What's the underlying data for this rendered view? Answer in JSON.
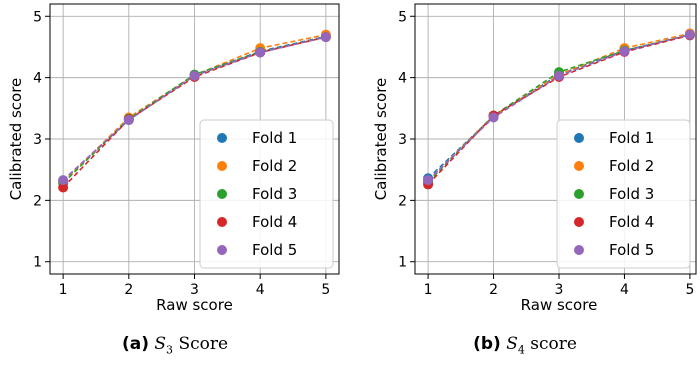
{
  "colors": {
    "fold_1": "#1f77b4",
    "fold_2": "#ff7f0e",
    "fold_3": "#2ca02c",
    "fold_4": "#d62728",
    "fold_5": "#9467bd",
    "grid": "#b0b0b0",
    "axis": "#000000"
  },
  "chart_data": [
    {
      "type": "line",
      "line_style": "dashed with circle markers",
      "caption_tag": "(a)",
      "caption_math": "S",
      "caption_sub": "3",
      "caption_text": "Score",
      "xlabel": "Raw score",
      "ylabel": "Calibrated score",
      "xlim": [
        0.8,
        5.2
      ],
      "ylim": [
        0.8,
        5.2
      ],
      "x_ticks": [
        "1",
        "2",
        "3",
        "4",
        "5"
      ],
      "y_ticks": [
        "1",
        "2",
        "3",
        "4",
        "5"
      ],
      "grid": true,
      "legend_position": "bottom-right",
      "x": [
        1,
        2,
        3,
        4,
        5
      ],
      "series": [
        {
          "name": "Fold 1",
          "values": [
            2.32,
            3.31,
            4.04,
            4.43,
            4.67
          ]
        },
        {
          "name": "Fold 2",
          "values": [
            2.3,
            3.35,
            4.04,
            4.48,
            4.7
          ]
        },
        {
          "name": "Fold 3",
          "values": [
            2.28,
            3.33,
            4.05,
            4.42,
            4.66
          ]
        },
        {
          "name": "Fold 4",
          "values": [
            2.21,
            3.32,
            4.01,
            4.41,
            4.66
          ]
        },
        {
          "name": "Fold 5",
          "values": [
            2.33,
            3.31,
            4.03,
            4.41,
            4.66
          ]
        }
      ]
    },
    {
      "type": "line",
      "line_style": "dashed with circle markers",
      "caption_tag": "(b)",
      "caption_math": "S",
      "caption_sub": "4",
      "caption_text": "score",
      "xlabel": "Raw score",
      "ylabel": "Calibrated score",
      "xlim": [
        0.8,
        5.2
      ],
      "ylim": [
        0.8,
        5.2
      ],
      "x_ticks": [
        "1",
        "2",
        "3",
        "4",
        "5"
      ],
      "y_ticks": [
        "1",
        "2",
        "3",
        "4",
        "5"
      ],
      "grid": true,
      "legend_position": "bottom-right",
      "x": [
        1,
        2,
        3,
        4,
        5
      ],
      "series": [
        {
          "name": "Fold 1",
          "values": [
            2.36,
            3.37,
            4.05,
            4.44,
            4.7
          ]
        },
        {
          "name": "Fold 2",
          "values": [
            2.32,
            3.38,
            4.05,
            4.48,
            4.72
          ]
        },
        {
          "name": "Fold 3",
          "values": [
            2.3,
            3.38,
            4.09,
            4.44,
            4.69
          ]
        },
        {
          "name": "Fold 4",
          "values": [
            2.26,
            3.38,
            4.01,
            4.42,
            4.69
          ]
        },
        {
          "name": "Fold 5",
          "values": [
            2.33,
            3.35,
            4.03,
            4.43,
            4.7
          ]
        }
      ]
    }
  ]
}
